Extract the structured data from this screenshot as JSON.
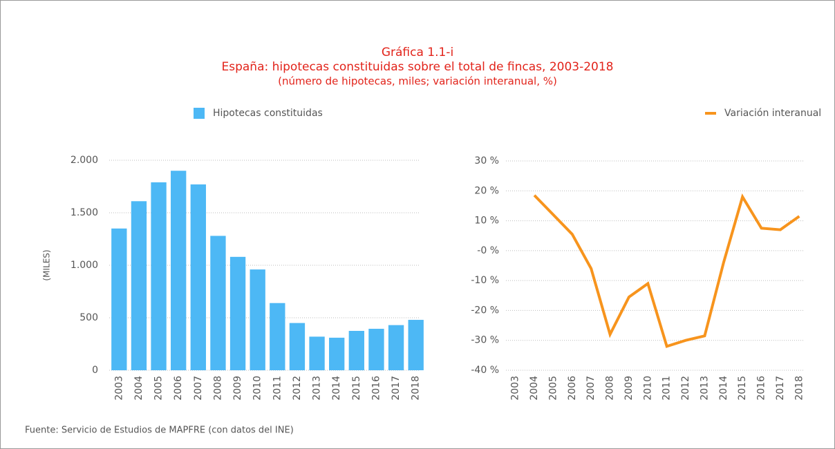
{
  "header": {
    "title": "Gráfica 1.1-i",
    "subtitle": "España: hipotecas constituidas sobre el total de fincas, 2003-2018",
    "note": "(número de hipotecas, miles; variación interanual, %)",
    "source": "Fuente: Servicio de Estudios de MAPFRE (con datos del INE)"
  },
  "chart_data": [
    {
      "type": "bar",
      "ylabel": "(MILES)",
      "categories": [
        "2003",
        "2004",
        "2005",
        "2006",
        "2007",
        "2008",
        "2009",
        "2010",
        "2011",
        "2012",
        "2013",
        "2014",
        "2015",
        "2016",
        "2017",
        "2018"
      ],
      "series": [
        {
          "name": "Hipotecas constituidas",
          "color": "#4db8f5",
          "values": [
            1350,
            1610,
            1790,
            1900,
            1770,
            1280,
            1080,
            960,
            640,
            450,
            320,
            310,
            375,
            395,
            430,
            480
          ]
        }
      ],
      "ylim": [
        0,
        2000
      ],
      "yticks": [
        0,
        500,
        {
          "value": 1000,
          "label": "1.000"
        },
        {
          "value": 1500,
          "label": "1.500"
        },
        {
          "value": 2000,
          "label": "2.000"
        }
      ],
      "grid": true
    },
    {
      "type": "line",
      "categories": [
        "2003",
        "2004",
        "2005",
        "2006",
        "2007",
        "2008",
        "2009",
        "2010",
        "2011",
        "2012",
        "2013",
        "2014",
        "2015",
        "2016",
        "2017",
        "2018"
      ],
      "series": [
        {
          "name": "Variación interanual",
          "color": "#f7941d",
          "values": [
            null,
            18.5,
            12,
            5.5,
            -6,
            -28,
            -15.5,
            -11,
            -32,
            -30,
            -28.5,
            -4,
            18,
            7.5,
            7,
            11.5
          ]
        }
      ],
      "ylim": [
        -40,
        30
      ],
      "yticks": [
        {
          "value": -40,
          "label": "-40 %"
        },
        {
          "value": -30,
          "label": "-30 %"
        },
        {
          "value": -20,
          "label": "-20 %"
        },
        {
          "value": -10,
          "label": "-10 %"
        },
        {
          "value": 0,
          "label": "-0 %"
        },
        {
          "value": 10,
          "label": "10 %"
        },
        {
          "value": 20,
          "label": "20 %"
        },
        {
          "value": 30,
          "label": "30 %"
        }
      ],
      "grid": true
    }
  ]
}
